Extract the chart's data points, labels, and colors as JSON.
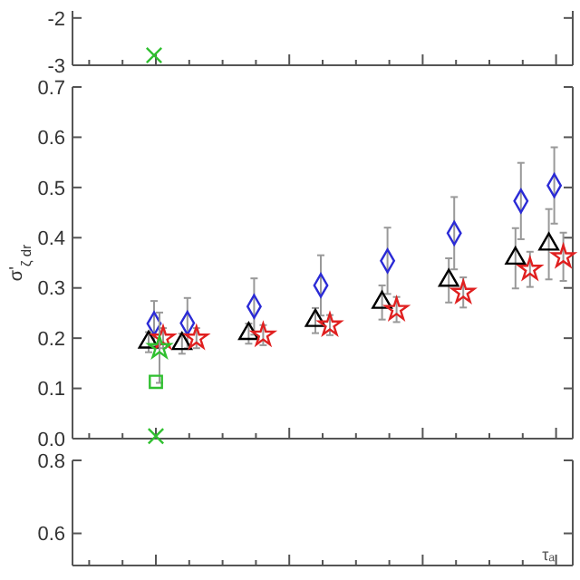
{
  "chart_data": [
    {
      "type": "scatter",
      "categories": [
        null,
        null,
        null,
        null,
        null,
        null,
        null,
        null,
        null,
        null,
        null,
        null,
        null,
        null,
        null
      ],
      "ylim": [
        -3,
        -1.85
      ],
      "yticks": [
        -3,
        -2
      ],
      "tick_labels": "y",
      "series": [
        {
          "color": "#30c030",
          "marker": "cross",
          "values": [
            null,
            null,
            -2.79,
            null,
            null,
            null,
            null,
            null,
            null,
            null,
            null,
            null,
            null,
            null,
            null
          ]
        }
      ]
    },
    {
      "type": "scatter",
      "ylabel": "σ'$_{ζ dr}$",
      "categories": [
        null,
        null,
        null,
        null,
        null,
        null,
        null,
        null,
        null,
        null,
        null,
        null,
        null,
        null,
        null
      ],
      "ylim": [
        0,
        0.7
      ],
      "yticks": [
        {
          "value": 0,
          "label": "0.0"
        },
        0.1,
        0.2,
        0.3,
        0.4,
        0.5,
        0.6,
        0.7
      ],
      "tick_labels": "y",
      "series": [
        {
          "color": "#2b2bd6",
          "marker": "diamond",
          "values": [
            null,
            null,
            0.229,
            0.23,
            null,
            0.263,
            null,
            0.305,
            null,
            0.354,
            null,
            0.409,
            null,
            0.473,
            0.504
          ],
          "errors": [
            null,
            null,
            0.045,
            0.05,
            null,
            0.056,
            null,
            0.06,
            null,
            0.066,
            null,
            0.072,
            null,
            0.076,
            0.076
          ]
        },
        {
          "color": "#000000",
          "marker": "triangle",
          "values": [
            null,
            null,
            0.192,
            0.189,
            null,
            0.209,
            null,
            0.235,
            null,
            0.271,
            null,
            0.315,
            null,
            0.359,
            0.387
          ],
          "errors": [
            null,
            null,
            0.02,
            0.02,
            null,
            0.02,
            null,
            0.025,
            null,
            0.034,
            null,
            0.044,
            null,
            0.06,
            0.07
          ]
        },
        {
          "color": "#e02020",
          "marker": "star",
          "values": [
            null,
            null,
            0.2,
            0.2,
            null,
            0.206,
            null,
            0.226,
            null,
            0.257,
            null,
            0.291,
            null,
            0.337,
            0.362
          ],
          "errors": [
            null,
            null,
            0.02,
            0.02,
            null,
            0.02,
            null,
            0.02,
            null,
            0.025,
            null,
            0.03,
            null,
            0.035,
            0.048
          ]
        },
        {
          "color": "#30c030",
          "marker": "star",
          "values": [
            null,
            null,
            0.181,
            null,
            null,
            null,
            null,
            null,
            null,
            null,
            null,
            null,
            null,
            null,
            null
          ],
          "errors": [
            null,
            null,
            0.07,
            null,
            null,
            null,
            null,
            null,
            null,
            null,
            null,
            null,
            null,
            null,
            null
          ]
        },
        {
          "color": "#30c030",
          "marker": "square",
          "values": [
            null,
            null,
            0.113,
            null,
            null,
            null,
            null,
            null,
            null,
            null,
            null,
            null,
            null,
            null,
            null
          ]
        },
        {
          "color": "#30c030",
          "marker": "cross",
          "values": [
            null,
            null,
            0.005,
            null,
            null,
            null,
            null,
            null,
            null,
            null,
            null,
            null,
            null,
            null,
            null
          ]
        }
      ]
    },
    {
      "type": "scatter",
      "categories": [
        null,
        null,
        null,
        null,
        null,
        null,
        null,
        null,
        null,
        null,
        null,
        null,
        null,
        null,
        null
      ],
      "ylim": [
        0.512,
        0.8
      ],
      "yticks": [
        0.6,
        0.8
      ],
      "tick_labels": "y",
      "annotations": [
        "τₐ"
      ]
    }
  ]
}
